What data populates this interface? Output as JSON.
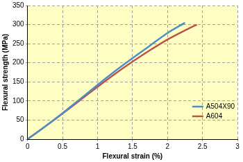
{
  "chart_data": {
    "type": "line",
    "x_label": "Flexural strain (%)",
    "y_label": "Flexural strength (MPa)",
    "series": [
      {
        "name": "A504X90",
        "color": "#4b8fc8",
        "marker": "none",
        "line_style": "solid",
        "x": [
          0,
          0.25,
          0.5,
          0.75,
          1,
          1.25,
          1.5,
          1.75,
          2,
          2.25
        ],
        "values": [
          0,
          33,
          68,
          105,
          142,
          178,
          212,
          245,
          278,
          305
        ]
      },
      {
        "name": "A604",
        "color": "#c0504d",
        "marker": "none",
        "line_style": "solid",
        "x": [
          0,
          0.25,
          0.5,
          0.75,
          1,
          1.25,
          1.5,
          1.75,
          2,
          2.25,
          2.42
        ],
        "values": [
          0,
          33,
          67,
          102,
          137,
          171,
          203,
          233,
          261,
          285,
          300
        ]
      }
    ],
    "xlim": [
      0,
      3
    ],
    "xticks": [
      0,
      0.5,
      1,
      1.5,
      2,
      2.5,
      3
    ],
    "ylim": [
      0,
      350
    ],
    "yticks": [
      0,
      50,
      100,
      150,
      200,
      250,
      300,
      350
    ],
    "grid": true,
    "legend": "lower right"
  }
}
